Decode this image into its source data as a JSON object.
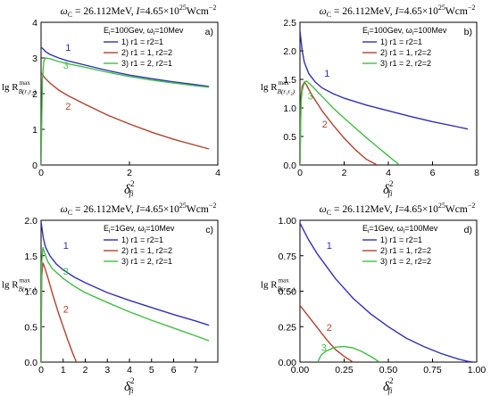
{
  "figure": {
    "ylabel_main": "lg R",
    "ylabel_sup": "max",
    "ylabel_sub": "B(r₁r₂)",
    "xlabel_main": "δ",
    "xlabel_sup": "2",
    "xlabel_sub": "fi"
  },
  "chart_data": [
    {
      "type": "line",
      "panel_label": "a)",
      "title": "ωC = 26.112MeV, I=4.65×10^25 Wcm^-2",
      "title_parts": {
        "omega": "ω",
        "omega_sub": "C",
        "rest": " = 26.112MeV, ",
        "I": "I",
        "value": "=4.65×10",
        "exp": "25",
        "unit": "Wcm",
        "unit_exp": "−2"
      },
      "legend_header": "Ei=100Gev, ωi=10Mev",
      "legend_header_parts": {
        "e": "E",
        "e_sub": "i",
        "e_val": "=100Gev, ",
        "w": "ω",
        "w_sub": "i",
        "w_val": "=10Mev"
      },
      "xlim": [
        0,
        4
      ],
      "ylim": [
        0,
        4
      ],
      "xticks": [
        "0",
        "2",
        "4"
      ],
      "yticks": [
        "0",
        "1",
        "2",
        "3",
        "4"
      ],
      "series": [
        {
          "name": "1) r1 = r2=1",
          "label": "1",
          "color": "#2f2fbf",
          "x": [
            0.0,
            0.05,
            0.1,
            0.2,
            0.4,
            0.6,
            1.0,
            1.5,
            2.0,
            2.5,
            3.0,
            3.5,
            3.8
          ],
          "y": [
            3.3,
            3.25,
            3.18,
            3.1,
            3.0,
            2.92,
            2.8,
            2.65,
            2.52,
            2.42,
            2.33,
            2.25,
            2.2
          ]
        },
        {
          "name": "2) r1 = 1, r2=2",
          "label": "2",
          "color": "#b5402a",
          "x": [
            0.0,
            0.05,
            0.1,
            0.2,
            0.4,
            0.6,
            1.0,
            1.5,
            2.0,
            2.5,
            3.0,
            3.5,
            3.8
          ],
          "y": [
            2.6,
            2.5,
            2.42,
            2.3,
            2.1,
            1.95,
            1.7,
            1.4,
            1.15,
            0.92,
            0.72,
            0.55,
            0.45
          ]
        },
        {
          "name": "3) r1 = 2, r2=1",
          "label": "3",
          "color": "#3fbf3f",
          "x": [
            0.0,
            0.03,
            0.06,
            0.1,
            0.2,
            0.4,
            0.6,
            1.0,
            1.5,
            2.0,
            2.5,
            3.0,
            3.5,
            3.8
          ],
          "y": [
            0.0,
            2.4,
            2.9,
            3.0,
            2.98,
            2.9,
            2.84,
            2.74,
            2.6,
            2.48,
            2.38,
            2.3,
            2.22,
            2.18
          ]
        }
      ],
      "series_label_positions": [
        [
          0.55,
          3.2
        ],
        [
          0.55,
          1.55
        ],
        [
          0.5,
          2.7
        ]
      ]
    },
    {
      "type": "line",
      "panel_label": "b)",
      "title": "ωC = 26.112MeV, I=4.65×10^25 Wcm^-2",
      "title_parts": {
        "omega": "ω",
        "omega_sub": "C",
        "rest": " = 26.112MeV, ",
        "I": "I",
        "value": "=4.65×10",
        "exp": "25",
        "unit": "Wcm",
        "unit_exp": "−2"
      },
      "legend_header": "Ei=100Gev, ωi=100Mev",
      "legend_header_parts": {
        "e": "E",
        "e_sub": "i",
        "e_val": "=100Gev, ",
        "w": "ω",
        "w_sub": "i",
        "w_val": "=100Mev"
      },
      "xlim": [
        0,
        8
      ],
      "ylim": [
        0,
        2.5
      ],
      "xticks": [
        "0",
        "2",
        "4",
        "6",
        "8"
      ],
      "yticks": [
        "0.0",
        "0.5",
        "1.0",
        "1.5",
        "2.0",
        "2.5"
      ],
      "series": [
        {
          "name": "1) r1 = r2=1",
          "label": "1",
          "color": "#2f2fbf",
          "x": [
            0.0,
            0.1,
            0.2,
            0.4,
            0.7,
            1.0,
            1.5,
            2.0,
            3.0,
            4.0,
            5.0,
            6.0,
            7.0,
            7.6
          ],
          "y": [
            2.35,
            2.0,
            1.8,
            1.6,
            1.45,
            1.35,
            1.25,
            1.17,
            1.05,
            0.95,
            0.85,
            0.76,
            0.68,
            0.63
          ]
        },
        {
          "name": "2) r1 = 1, r2=2",
          "label": "2",
          "color": "#b5402a",
          "x": [
            0.0,
            0.05,
            0.1,
            0.2,
            0.3,
            0.5,
            1.0,
            1.5,
            2.0,
            2.5,
            3.0,
            3.5
          ],
          "y": [
            0.0,
            1.2,
            1.38,
            1.45,
            1.4,
            1.25,
            0.95,
            0.7,
            0.47,
            0.27,
            0.1,
            0.0
          ]
        },
        {
          "name": "3) r1 = 2, r2=2",
          "label": "3",
          "color": "#3fbf3f",
          "x": [
            0.0,
            0.05,
            0.1,
            0.2,
            0.3,
            0.5,
            1.0,
            1.5,
            2.0,
            2.5,
            3.0,
            3.5,
            4.0,
            4.5
          ],
          "y": [
            0.0,
            1.1,
            1.3,
            1.45,
            1.47,
            1.4,
            1.2,
            1.0,
            0.82,
            0.65,
            0.48,
            0.32,
            0.16,
            0.0
          ]
        }
      ],
      "series_label_positions": [
        [
          1.1,
          1.55
        ],
        [
          1.0,
          0.66
        ],
        [
          0.35,
          1.15
        ]
      ]
    },
    {
      "type": "line",
      "panel_label": "c)",
      "title": "ωC = 26.112MeV, I=4.65×10^25 Wcm^-2",
      "title_parts": {
        "omega": "ω",
        "omega_sub": "C",
        "rest": " = 26.112MeV, ",
        "I": "I",
        "value": "=4.65×10",
        "exp": "25",
        "unit": "Wcm",
        "unit_exp": "−2"
      },
      "legend_header": "Ei=1Gev, ωi=10Mev",
      "legend_header_parts": {
        "e": "E",
        "e_sub": "i",
        "e_val": "=1Gev, ",
        "w": "ω",
        "w_sub": "i",
        "w_val": "=10Mev"
      },
      "xlim": [
        0,
        8
      ],
      "ylim": [
        0,
        2.0
      ],
      "xticks": [
        "0",
        "1",
        "2",
        "3",
        "4",
        "5",
        "6",
        "7"
      ],
      "yticks": [
        "0.0",
        "0.5",
        "1.0",
        "1.5",
        "2.0"
      ],
      "series": [
        {
          "name": "1) r1 = r2=1",
          "label": "1",
          "color": "#2f2fbf",
          "x": [
            0.0,
            0.1,
            0.2,
            0.4,
            0.7,
            1.0,
            1.5,
            2.0,
            3.0,
            4.0,
            5.0,
            6.0,
            7.0,
            7.6
          ],
          "y": [
            1.98,
            1.75,
            1.62,
            1.5,
            1.38,
            1.3,
            1.2,
            1.12,
            0.98,
            0.87,
            0.77,
            0.67,
            0.58,
            0.52
          ]
        },
        {
          "name": "2) r1 = 1, r2=2",
          "label": "2",
          "color": "#b5402a",
          "x": [
            0.0,
            0.03,
            0.08,
            0.15,
            0.3,
            0.5,
            0.8,
            1.0,
            1.2,
            1.4,
            1.6
          ],
          "y": [
            0.0,
            1.2,
            1.4,
            1.35,
            1.2,
            0.98,
            0.68,
            0.5,
            0.32,
            0.15,
            0.0
          ]
        },
        {
          "name": "3) r1 = 2, r2=1",
          "label": "3",
          "color": "#3fbf3f",
          "x": [
            0.0,
            0.03,
            0.08,
            0.15,
            0.3,
            0.5,
            1.0,
            1.5,
            2.0,
            3.0,
            4.0,
            5.0,
            6.0,
            7.0,
            7.6
          ],
          "y": [
            0.0,
            1.4,
            1.62,
            1.55,
            1.42,
            1.32,
            1.18,
            1.07,
            0.98,
            0.84,
            0.71,
            0.59,
            0.48,
            0.37,
            0.3
          ]
        }
      ],
      "series_label_positions": [
        [
          1.0,
          1.6
        ],
        [
          1.0,
          0.7
        ],
        [
          1.0,
          1.23
        ]
      ]
    },
    {
      "type": "line",
      "panel_label": "d)",
      "title": "ωC = 26.112MeV, I=4.65×10^25 Wcm^-2",
      "title_parts": {
        "omega": "ω",
        "omega_sub": "C",
        "rest": " = 26.112MeV, ",
        "I": "I",
        "value": "=4.65×10",
        "exp": "25",
        "unit": "Wcm",
        "unit_exp": "−2"
      },
      "legend_header": "Ei=1Gev, ωi=100Mev",
      "legend_header_parts": {
        "e": "E",
        "e_sub": "i",
        "e_val": "=1Gev, ",
        "w": "ω",
        "w_sub": "i",
        "w_val": "=100Mev"
      },
      "xlim": [
        0,
        1.0
      ],
      "ylim": [
        0,
        1.0
      ],
      "xticks": [
        "0.00",
        "0.25",
        "0.50",
        "0.75",
        "1.00"
      ],
      "yticks": [
        "0.00",
        "0.25",
        "0.50",
        "0.75",
        "1.00"
      ],
      "series": [
        {
          "name": "1) r1 = r2=1",
          "label": "1",
          "color": "#2f2fbf",
          "x": [
            0.0,
            0.05,
            0.1,
            0.2,
            0.3,
            0.4,
            0.5,
            0.6,
            0.7,
            0.8,
            0.9,
            0.95,
            0.98
          ],
          "y": [
            0.98,
            0.86,
            0.76,
            0.59,
            0.45,
            0.34,
            0.25,
            0.17,
            0.11,
            0.06,
            0.02,
            0.005,
            0.0
          ]
        },
        {
          "name": "2) r1 = 1, r2=2",
          "label": "2",
          "color": "#b5402a",
          "x": [
            0.0,
            0.05,
            0.1,
            0.15,
            0.2,
            0.25,
            0.3
          ],
          "y": [
            0.4,
            0.32,
            0.24,
            0.16,
            0.09,
            0.04,
            0.0
          ]
        },
        {
          "name": "3) r1 = 2, r2=2",
          "label": "3",
          "color": "#3fbf3f",
          "x": [
            0.1,
            0.12,
            0.15,
            0.2,
            0.25,
            0.3,
            0.35,
            0.4,
            0.45
          ],
          "y": [
            0.0,
            0.05,
            0.08,
            0.105,
            0.11,
            0.1,
            0.075,
            0.04,
            0.0
          ]
        }
      ],
      "series_label_positions": [
        [
          0.15,
          0.8
        ],
        [
          0.15,
          0.22
        ],
        [
          0.12,
          0.08
        ]
      ]
    }
  ]
}
